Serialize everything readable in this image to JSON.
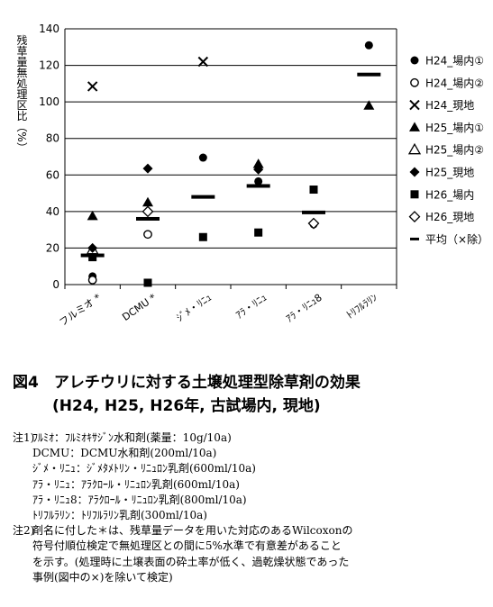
{
  "chart_data": {
    "type": "scatter",
    "ylabel": "残草量無処理区比（%）",
    "ylim": [
      0,
      140
    ],
    "yticks": [
      0,
      20,
      40,
      60,
      80,
      100,
      120,
      140
    ],
    "grid": true,
    "legend_position": "right",
    "categories": [
      "フルミオ *",
      "DCMU *",
      "ｼﾞﾒ・ﾘﾆｭ",
      "ｱﾗ・ﾘﾆｭ",
      "ｱﾗ・ﾘﾆｭ8",
      "ﾄﾘﾌﾙﾗﾘﾝ"
    ],
    "series": [
      {
        "name": "H24_場内①",
        "marker": "filled-circle",
        "values": [
          4.5,
          null,
          69.5,
          56.5,
          33,
          131
        ]
      },
      {
        "name": "H24_場内②",
        "marker": "open-circle",
        "values": [
          2.5,
          27.5,
          null,
          null,
          null,
          null
        ]
      },
      {
        "name": "H24_現地",
        "marker": "x",
        "values": [
          108.5,
          null,
          122,
          null,
          null,
          null
        ]
      },
      {
        "name": "H25_場内①",
        "marker": "filled-triangle",
        "values": [
          37.5,
          45,
          null,
          66,
          null,
          98
        ]
      },
      {
        "name": "H25_場内②",
        "marker": "open-triangle",
        "values": [
          19,
          null,
          null,
          null,
          null,
          null
        ]
      },
      {
        "name": "H25_現地",
        "marker": "filled-diamond",
        "values": [
          20,
          63.5,
          null,
          63,
          null,
          null
        ]
      },
      {
        "name": "H26_場内",
        "marker": "filled-square",
        "values": [
          15,
          1,
          26,
          28.5,
          52,
          null
        ]
      },
      {
        "name": "H26_現地",
        "marker": "open-diamond",
        "values": [
          null,
          40,
          null,
          null,
          33.5,
          null
        ]
      },
      {
        "name": "平均（×除）",
        "marker": "dash",
        "values": [
          16,
          36,
          48,
          54,
          39.5,
          115
        ]
      }
    ]
  },
  "caption": {
    "line1": "図4　アレチウリに対する土壌処理型除草剤の効果",
    "line2": "(H24, H25, H26年, 古試場内, 現地)"
  },
  "notes": {
    "note1_label": "注1)",
    "note1_lines": [
      "ﾌﾙﾐｵ：ﾌﾙﾐｵｷｻｼﾞﾝ水和剤(薬量：10g/10a)",
      "DCMU：DCMU水和剤(200ml/10a)",
      "ｼﾞﾒ・ﾘﾆｭ：ｼﾞﾒﾀﾒﾄﾘﾝ・ﾘﾆｭﾛﾝ乳剤(600ml/10a)",
      "ｱﾗ・ﾘﾆｭ：ｱﾗｸﾛｰﾙ・ﾘﾆｭﾛﾝ乳剤(600ml/10a)",
      "ｱﾗ・ﾘﾆｭ8：ｱﾗｸﾛｰﾙ・ﾘﾆｭﾛﾝ乳剤(800ml/10a)",
      "ﾄﾘﾌﾙﾗﾘﾝ：ﾄﾘﾌﾙﾗﾘﾝ乳剤(300ml/10a)"
    ],
    "note2_label": "注2)",
    "note2_lines": [
      "剤名に付した＊は、残草量データを用いた対応のあるWilcoxonの",
      "符号付順位検定で無処理区との間に5%水準で有意差があること",
      "を示す。(処理時に土壌表面の砕土率が低く、過乾燥状態であった",
      "事例(図中の×)を除いて検定)"
    ]
  }
}
